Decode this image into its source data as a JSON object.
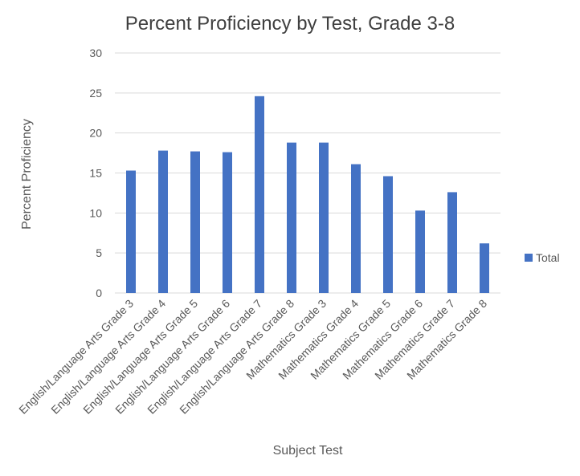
{
  "chart_data": {
    "type": "bar",
    "title": "Percent Proficiency by Test, Grade 3-8",
    "xlabel": "Subject Test",
    "ylabel": "Percent Proficiency",
    "ylim": [
      0,
      30
    ],
    "yticks": [
      0,
      5,
      10,
      15,
      20,
      25,
      30
    ],
    "grid": true,
    "legend_position": "right",
    "categories": [
      "English/Language Arts Grade 3",
      "English/Language Arts Grade 4",
      "English/Language Arts Grade 5",
      "English/Language Arts Grade 6",
      "English/Language Arts Grade 7",
      "English/Language Arts Grade 8",
      "Mathematics Grade 3",
      "Mathematics Grade 4",
      "Mathematics Grade 5",
      "Mathematics Grade 6",
      "Mathematics Grade 7",
      "Mathematics Grade 8"
    ],
    "series": [
      {
        "name": "Total",
        "color": "#4472c4",
        "values": [
          15.3,
          17.8,
          17.7,
          17.6,
          24.6,
          18.8,
          18.8,
          16.1,
          14.6,
          10.3,
          12.6,
          6.2
        ]
      }
    ]
  }
}
